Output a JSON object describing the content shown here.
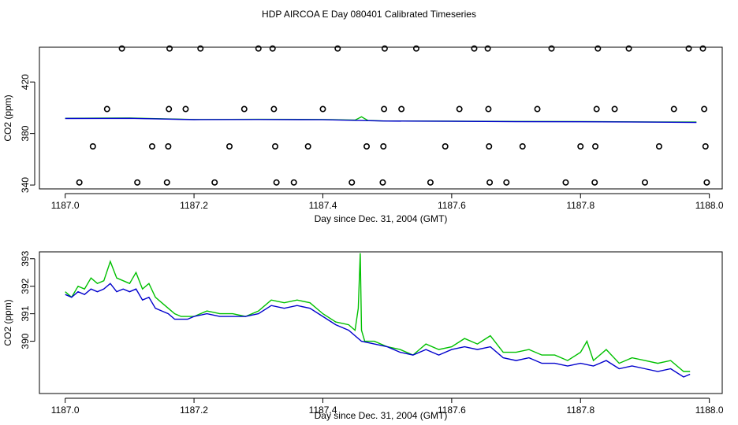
{
  "title": "HDP AIRCOA E  Day 080401  Calibrated Timeseries",
  "colors": {
    "series_a": "#00c000",
    "series_b": "#0000cc",
    "axis": "#000000"
  },
  "chart_data": [
    {
      "type": "line",
      "title": "HDP AIRCOA E  Day 080401  Calibrated Timeseries",
      "xlabel": "Day since Dec. 31, 2004 (GMT)",
      "ylabel": "CO2 (ppm)",
      "xlim": [
        1186.96,
        1188.02
      ],
      "ylim": [
        337,
        447
      ],
      "x_ticks": [
        1187.0,
        1187.2,
        1187.4,
        1187.6,
        1187.8,
        1188.0
      ],
      "x_tick_labels": [
        "1187.0",
        "1187.2",
        "1187.4",
        "1187.6",
        "1187.8",
        "1188.0"
      ],
      "y_ticks": [
        340,
        380,
        420
      ],
      "y_tick_labels": [
        "340",
        "380",
        "420"
      ],
      "series": [
        {
          "color": "#00c000",
          "x": [
            1187.0,
            1187.1,
            1187.2,
            1187.3,
            1187.4,
            1187.45,
            1187.46,
            1187.47,
            1187.5,
            1187.6,
            1187.7,
            1187.8,
            1187.9,
            1187.98
          ],
          "values": [
            391.8,
            392.0,
            390.9,
            391.0,
            390.9,
            390.4,
            393.0,
            390.1,
            389.7,
            389.6,
            389.4,
            389.3,
            389.0,
            388.9
          ]
        },
        {
          "color": "#0000cc",
          "x": [
            1187.0,
            1187.1,
            1187.2,
            1187.3,
            1187.4,
            1187.5,
            1187.6,
            1187.7,
            1187.8,
            1187.9,
            1187.98
          ],
          "values": [
            391.7,
            391.8,
            390.8,
            390.9,
            390.7,
            389.7,
            389.5,
            389.2,
            389.1,
            388.9,
            388.6
          ]
        }
      ],
      "markers": {
        "style": "open-circle",
        "points": [
          [
            1187.022,
            342
          ],
          [
            1187.043,
            370
          ],
          [
            1187.065,
            399
          ],
          [
            1187.088,
            446
          ],
          [
            1187.112,
            342
          ],
          [
            1187.135,
            370
          ],
          [
            1187.158,
            342
          ],
          [
            1187.16,
            370
          ],
          [
            1187.161,
            399
          ],
          [
            1187.162,
            446
          ],
          [
            1187.187,
            399
          ],
          [
            1187.21,
            446
          ],
          [
            1187.232,
            342
          ],
          [
            1187.255,
            370
          ],
          [
            1187.278,
            399
          ],
          [
            1187.3,
            446
          ],
          [
            1187.322,
            446
          ],
          [
            1187.324,
            399
          ],
          [
            1187.326,
            370
          ],
          [
            1187.328,
            342
          ],
          [
            1187.355,
            342
          ],
          [
            1187.377,
            370
          ],
          [
            1187.4,
            399
          ],
          [
            1187.423,
            446
          ],
          [
            1187.445,
            342
          ],
          [
            1187.468,
            370
          ],
          [
            1187.493,
            342
          ],
          [
            1187.494,
            370
          ],
          [
            1187.495,
            399
          ],
          [
            1187.496,
            446
          ],
          [
            1187.522,
            399
          ],
          [
            1187.545,
            446
          ],
          [
            1187.567,
            342
          ],
          [
            1187.59,
            370
          ],
          [
            1187.612,
            399
          ],
          [
            1187.635,
            446
          ],
          [
            1187.656,
            446
          ],
          [
            1187.657,
            399
          ],
          [
            1187.658,
            370
          ],
          [
            1187.659,
            342
          ],
          [
            1187.685,
            342
          ],
          [
            1187.71,
            370
          ],
          [
            1187.733,
            399
          ],
          [
            1187.755,
            446
          ],
          [
            1187.777,
            342
          ],
          [
            1187.8,
            370
          ],
          [
            1187.822,
            342
          ],
          [
            1187.823,
            370
          ],
          [
            1187.825,
            399
          ],
          [
            1187.827,
            446
          ],
          [
            1187.853,
            399
          ],
          [
            1187.875,
            446
          ],
          [
            1187.9,
            342
          ],
          [
            1187.922,
            370
          ],
          [
            1187.945,
            399
          ],
          [
            1187.968,
            446
          ],
          [
            1187.99,
            446
          ],
          [
            1187.992,
            399
          ],
          [
            1187.994,
            370
          ],
          [
            1187.996,
            342
          ]
        ]
      }
    },
    {
      "type": "line",
      "title": "",
      "xlabel": "Day since Dec. 31, 2004 (GMT)",
      "ylabel": "CO2 (ppm)",
      "xlim": [
        1186.96,
        1188.02
      ],
      "ylim": [
        388.1,
        393.25
      ],
      "x_ticks": [
        1187.0,
        1187.2,
        1187.4,
        1187.6,
        1187.8,
        1188.0
      ],
      "x_tick_labels": [
        "1187.0",
        "1187.2",
        "1187.4",
        "1187.6",
        "1187.8",
        "1188.0"
      ],
      "y_ticks": [
        390,
        391,
        392,
        393
      ],
      "y_tick_labels": [
        "390",
        "391",
        "392",
        "393"
      ],
      "series": [
        {
          "color": "#00c000",
          "x": [
            1187.0,
            1187.01,
            1187.02,
            1187.03,
            1187.04,
            1187.05,
            1187.06,
            1187.07,
            1187.08,
            1187.09,
            1187.1,
            1187.11,
            1187.12,
            1187.13,
            1187.14,
            1187.15,
            1187.16,
            1187.17,
            1187.18,
            1187.19,
            1187.2,
            1187.22,
            1187.24,
            1187.26,
            1187.28,
            1187.3,
            1187.32,
            1187.34,
            1187.36,
            1187.38,
            1187.4,
            1187.42,
            1187.44,
            1187.45,
            1187.455,
            1187.458,
            1187.46,
            1187.465,
            1187.47,
            1187.48,
            1187.5,
            1187.52,
            1187.54,
            1187.56,
            1187.58,
            1187.6,
            1187.62,
            1187.64,
            1187.66,
            1187.68,
            1187.7,
            1187.72,
            1187.74,
            1187.76,
            1187.78,
            1187.8,
            1187.81,
            1187.82,
            1187.84,
            1187.86,
            1187.88,
            1187.9,
            1187.92,
            1187.94,
            1187.96,
            1187.97
          ],
          "values": [
            391.8,
            391.6,
            392.0,
            391.9,
            392.3,
            392.1,
            392.2,
            392.9,
            392.3,
            392.2,
            392.1,
            392.5,
            391.9,
            392.1,
            391.6,
            391.4,
            391.2,
            391.0,
            390.9,
            390.9,
            390.9,
            391.1,
            391.0,
            391.0,
            390.9,
            391.1,
            391.5,
            391.4,
            391.5,
            391.4,
            391.0,
            390.7,
            390.6,
            390.4,
            391.2,
            393.2,
            390.4,
            390.0,
            390.0,
            390.0,
            389.8,
            389.7,
            389.5,
            389.9,
            389.7,
            389.8,
            390.1,
            389.9,
            390.2,
            389.6,
            389.6,
            389.7,
            389.5,
            389.5,
            389.3,
            389.6,
            390.0,
            389.3,
            389.7,
            389.2,
            389.4,
            389.3,
            389.2,
            389.3,
            388.9,
            388.9
          ]
        },
        {
          "color": "#0000cc",
          "x": [
            1187.0,
            1187.01,
            1187.02,
            1187.03,
            1187.04,
            1187.05,
            1187.06,
            1187.07,
            1187.08,
            1187.09,
            1187.1,
            1187.11,
            1187.12,
            1187.13,
            1187.14,
            1187.15,
            1187.16,
            1187.17,
            1187.18,
            1187.19,
            1187.2,
            1187.22,
            1187.24,
            1187.26,
            1187.28,
            1187.3,
            1187.32,
            1187.34,
            1187.36,
            1187.38,
            1187.4,
            1187.42,
            1187.44,
            1187.46,
            1187.48,
            1187.5,
            1187.52,
            1187.54,
            1187.56,
            1187.58,
            1187.6,
            1187.62,
            1187.64,
            1187.66,
            1187.68,
            1187.7,
            1187.72,
            1187.74,
            1187.76,
            1187.78,
            1187.8,
            1187.82,
            1187.84,
            1187.86,
            1187.88,
            1187.9,
            1187.92,
            1187.94,
            1187.96,
            1187.97
          ],
          "values": [
            391.7,
            391.6,
            391.8,
            391.7,
            391.9,
            391.8,
            391.9,
            392.1,
            391.8,
            391.9,
            391.8,
            391.9,
            391.5,
            391.6,
            391.2,
            391.1,
            391.0,
            390.8,
            390.8,
            390.8,
            390.9,
            391.0,
            390.9,
            390.9,
            390.9,
            391.0,
            391.3,
            391.2,
            391.3,
            391.2,
            390.9,
            390.6,
            390.4,
            390.0,
            389.9,
            389.8,
            389.6,
            389.5,
            389.7,
            389.5,
            389.7,
            389.8,
            389.7,
            389.8,
            389.4,
            389.3,
            389.4,
            389.2,
            389.2,
            389.1,
            389.2,
            389.1,
            389.3,
            389.0,
            389.1,
            389.0,
            388.9,
            389.0,
            388.7,
            388.8
          ]
        }
      ]
    }
  ]
}
